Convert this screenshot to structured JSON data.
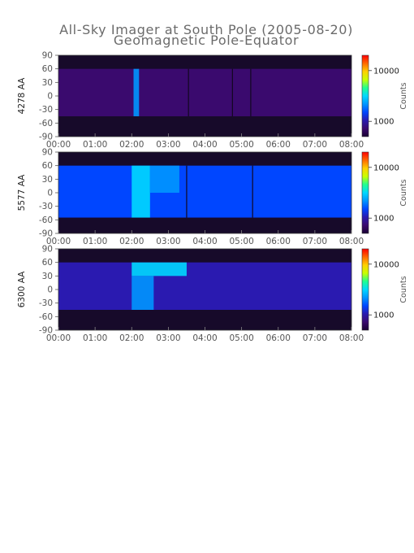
{
  "title_line1": "All-Sky Imager at South Pole (2005-08-20)",
  "title_line2": "Geomagnetic Pole-Equator",
  "colors": {
    "axis_text": "#555555",
    "panel_frame": "#3a3a3a",
    "background_night": "#170a2a",
    "colormap": [
      "#1a0033",
      "#3a0a6e",
      "#2a1ab0",
      "#0046ff",
      "#0096ff",
      "#00d8ff",
      "#20ff90",
      "#c8ff00",
      "#ffd000",
      "#ff6a00",
      "#ff0000"
    ]
  },
  "chart_data": [
    {
      "type": "heatmap",
      "ylabel": "4278 AA",
      "colorbar_label": "Counts",
      "colorbar_ticks": [
        "10000",
        "1000"
      ],
      "colorbar_tick_values": [
        10000,
        1000
      ],
      "x_ticks": [
        "00:00",
        "01:00",
        "02:00",
        "03:00",
        "04:00",
        "05:00",
        "06:00",
        "07:00",
        "08:00"
      ],
      "xlim_hours": [
        0,
        8
      ],
      "y_ticks": [
        "90",
        "60",
        "30",
        "0",
        "-30",
        "-60",
        "-90"
      ],
      "ylim": [
        -90,
        90
      ],
      "field_of_view_deg": [
        -45,
        60
      ],
      "baseline_level": 0.18,
      "bright_bands": [
        {
          "start_hour": 2.05,
          "end_hour": 2.2,
          "lat_range": [
            -45,
            60
          ],
          "level": 0.4
        }
      ],
      "dark_lines_hours": [
        3.55,
        4.75,
        5.25
      ]
    },
    {
      "type": "heatmap",
      "ylabel": "5577 AA",
      "colorbar_label": "Counts",
      "colorbar_ticks": [
        "10000",
        "1000"
      ],
      "colorbar_tick_values": [
        10000,
        1000
      ],
      "x_ticks": [
        "00:00",
        "01:00",
        "02:00",
        "03:00",
        "04:00",
        "05:00",
        "06:00",
        "07:00",
        "08:00"
      ],
      "xlim_hours": [
        0,
        8
      ],
      "y_ticks": [
        "90",
        "60",
        "30",
        "0",
        "-30",
        "-60",
        "-90"
      ],
      "ylim": [
        -90,
        90
      ],
      "field_of_view_deg": [
        -55,
        60
      ],
      "baseline_level": 0.3,
      "bright_bands": [
        {
          "start_hour": 2.0,
          "end_hour": 2.5,
          "lat_range": [
            -55,
            60
          ],
          "level": 0.58
        },
        {
          "start_hour": 2.5,
          "end_hour": 3.3,
          "lat_range": [
            0,
            60
          ],
          "level": 0.42
        }
      ],
      "dark_lines_hours": [
        3.5,
        5.3
      ]
    },
    {
      "type": "heatmap",
      "ylabel": "6300 AA",
      "colorbar_label": "Counts",
      "colorbar_ticks": [
        "10000",
        "1000"
      ],
      "colorbar_tick_values": [
        10000,
        1000
      ],
      "x_ticks": [
        "00:00",
        "01:00",
        "02:00",
        "03:00",
        "04:00",
        "05:00",
        "06:00",
        "07:00",
        "08:00"
      ],
      "xlim_hours": [
        0,
        8
      ],
      "y_ticks": [
        "90",
        "60",
        "30",
        "0",
        "-30",
        "-60",
        "-90"
      ],
      "ylim": [
        -90,
        90
      ],
      "field_of_view_deg": [
        -45,
        60
      ],
      "baseline_level": 0.28,
      "bright_bands": [
        {
          "start_hour": 2.0,
          "end_hour": 3.5,
          "lat_range": [
            30,
            60
          ],
          "level": 0.55
        },
        {
          "start_hour": 2.0,
          "end_hour": 2.6,
          "lat_range": [
            -45,
            30
          ],
          "level": 0.42
        }
      ],
      "dark_lines_hours": []
    }
  ]
}
